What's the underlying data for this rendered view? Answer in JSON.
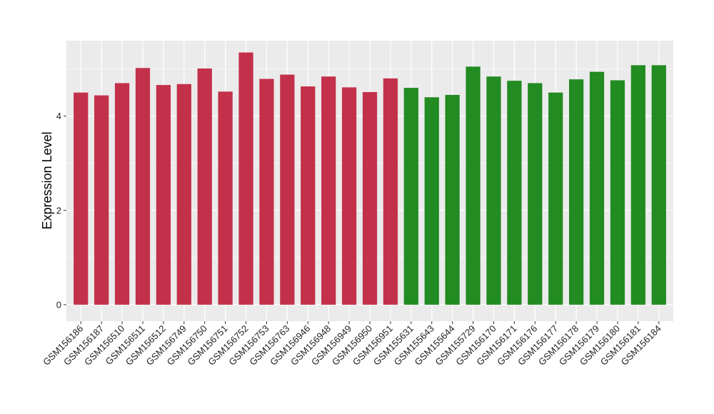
{
  "chart_data": {
    "type": "bar",
    "ylabel": "Expression Level",
    "xlabel": "",
    "ylim": [
      -0.35,
      5.6
    ],
    "yticks": [
      0,
      2,
      4
    ],
    "grid": true,
    "background": "#ebebeb",
    "grid_color": "#ffffff",
    "series_colors": [
      "#c3304a",
      "#228b22"
    ],
    "categories": [
      "GSM156186",
      "GSM156187",
      "GSM156510",
      "GSM156511",
      "GSM156512",
      "GSM156749",
      "GSM156750",
      "GSM156751",
      "GSM156752",
      "GSM156753",
      "GSM156763",
      "GSM156946",
      "GSM156948",
      "GSM156949",
      "GSM156950",
      "GSM156951",
      "GSM155631",
      "GSM155643",
      "GSM155644",
      "GSM155729",
      "GSM156170",
      "GSM156171",
      "GSM156176",
      "GSM156177",
      "GSM156178",
      "GSM156179",
      "GSM156180",
      "GSM156181",
      "GSM156184"
    ],
    "values": [
      4.5,
      4.44,
      4.7,
      5.02,
      4.66,
      4.68,
      5.01,
      4.52,
      5.35,
      4.79,
      4.88,
      4.63,
      4.84,
      4.61,
      4.51,
      4.8,
      4.6,
      4.4,
      4.45,
      5.05,
      4.84,
      4.75,
      4.7,
      4.5,
      4.78,
      4.94,
      4.76,
      5.08,
      5.08
    ],
    "group": [
      0,
      0,
      0,
      0,
      0,
      0,
      0,
      0,
      0,
      0,
      0,
      0,
      0,
      0,
      0,
      0,
      1,
      1,
      1,
      1,
      1,
      1,
      1,
      1,
      1,
      1,
      1,
      1,
      1
    ]
  }
}
